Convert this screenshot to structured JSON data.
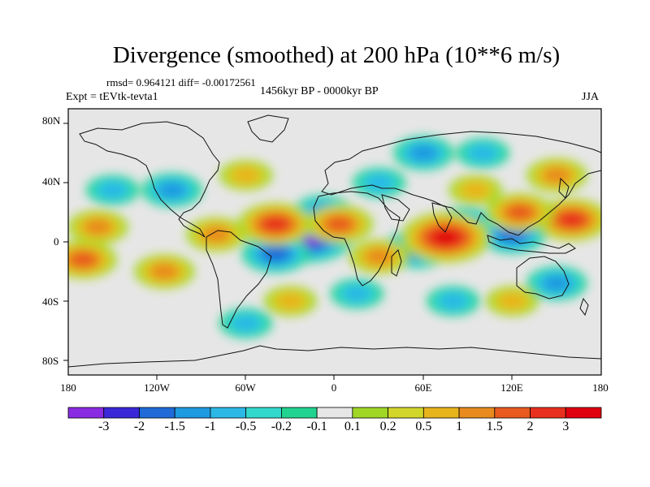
{
  "title": "Divergence (smoothed) at 200 hPa (10**6 m/s)",
  "stats": "rmsd= 0.964121 diff= -0.00172561",
  "expt": "Expt = tEVtk-tevta1",
  "period": "1456kyr BP - 0000kyr BP",
  "season": "JJA",
  "lat_labels": [
    "80N",
    "40N",
    "0",
    "40S",
    "80S"
  ],
  "lon_labels": [
    "180",
    "120W",
    "60W",
    "0",
    "60E",
    "120E",
    "180"
  ],
  "colorbar": {
    "colors": [
      "#8a2be2",
      "#3a28d8",
      "#1f6bd8",
      "#1e9ae0",
      "#2bb8e6",
      "#33d8cc",
      "#20d38f",
      "#e6e6e6",
      "#a0d626",
      "#d2d62a",
      "#e8b41c",
      "#e88a1e",
      "#e85a1e",
      "#e8301e",
      "#e00010"
    ],
    "labels": [
      "-3",
      "-2",
      "-1.5",
      "-1",
      "-0.5",
      "-0.2",
      "-0.1",
      "0.1",
      "0.2",
      "0.5",
      "1",
      "1.5",
      "2",
      "3"
    ]
  },
  "map_blobs": [
    {
      "lon": -18,
      "lat": 3,
      "value": -3
    },
    {
      "lon": -40,
      "lat": -8,
      "value": -1.5
    },
    {
      "lon": -8,
      "lat": 20,
      "value": -1
    },
    {
      "lon": 55,
      "lat": -5,
      "value": -1.5
    },
    {
      "lon": 88,
      "lat": 12,
      "value": -1
    },
    {
      "lon": 120,
      "lat": 5,
      "value": -1.5
    },
    {
      "lon": 150,
      "lat": -28,
      "value": -1
    },
    {
      "lon": -110,
      "lat": 35,
      "value": -1
    },
    {
      "lon": -150,
      "lat": 35,
      "value": -0.5
    },
    {
      "lon": 30,
      "lat": 40,
      "value": -0.5
    },
    {
      "lon": 60,
      "lat": 60,
      "value": -1
    },
    {
      "lon": 100,
      "lat": 60,
      "value": -0.5
    },
    {
      "lon": -60,
      "lat": -55,
      "value": -0.5
    },
    {
      "lon": 80,
      "lat": -40,
      "value": -0.5
    },
    {
      "lon": 15,
      "lat": -35,
      "value": -0.5
    },
    {
      "lon": 75,
      "lat": 3,
      "value": 3
    },
    {
      "lon": -40,
      "lat": 12,
      "value": 2
    },
    {
      "lon": 3,
      "lat": 12,
      "value": 1.5
    },
    {
      "lon": 160,
      "lat": 15,
      "value": 2
    },
    {
      "lon": 125,
      "lat": 20,
      "value": 1.5
    },
    {
      "lon": -80,
      "lat": 5,
      "value": 1
    },
    {
      "lon": -160,
      "lat": 10,
      "value": 1
    },
    {
      "lon": -170,
      "lat": -12,
      "value": 1.5
    },
    {
      "lon": -115,
      "lat": -20,
      "value": 1
    },
    {
      "lon": 30,
      "lat": -10,
      "value": 1
    },
    {
      "lon": 95,
      "lat": 35,
      "value": 0.5
    },
    {
      "lon": 150,
      "lat": 45,
      "value": 1
    },
    {
      "lon": -60,
      "lat": 45,
      "value": 0.5
    },
    {
      "lon": 120,
      "lat": -40,
      "value": 0.5
    },
    {
      "lon": -30,
      "lat": -40,
      "value": 0.5
    }
  ]
}
